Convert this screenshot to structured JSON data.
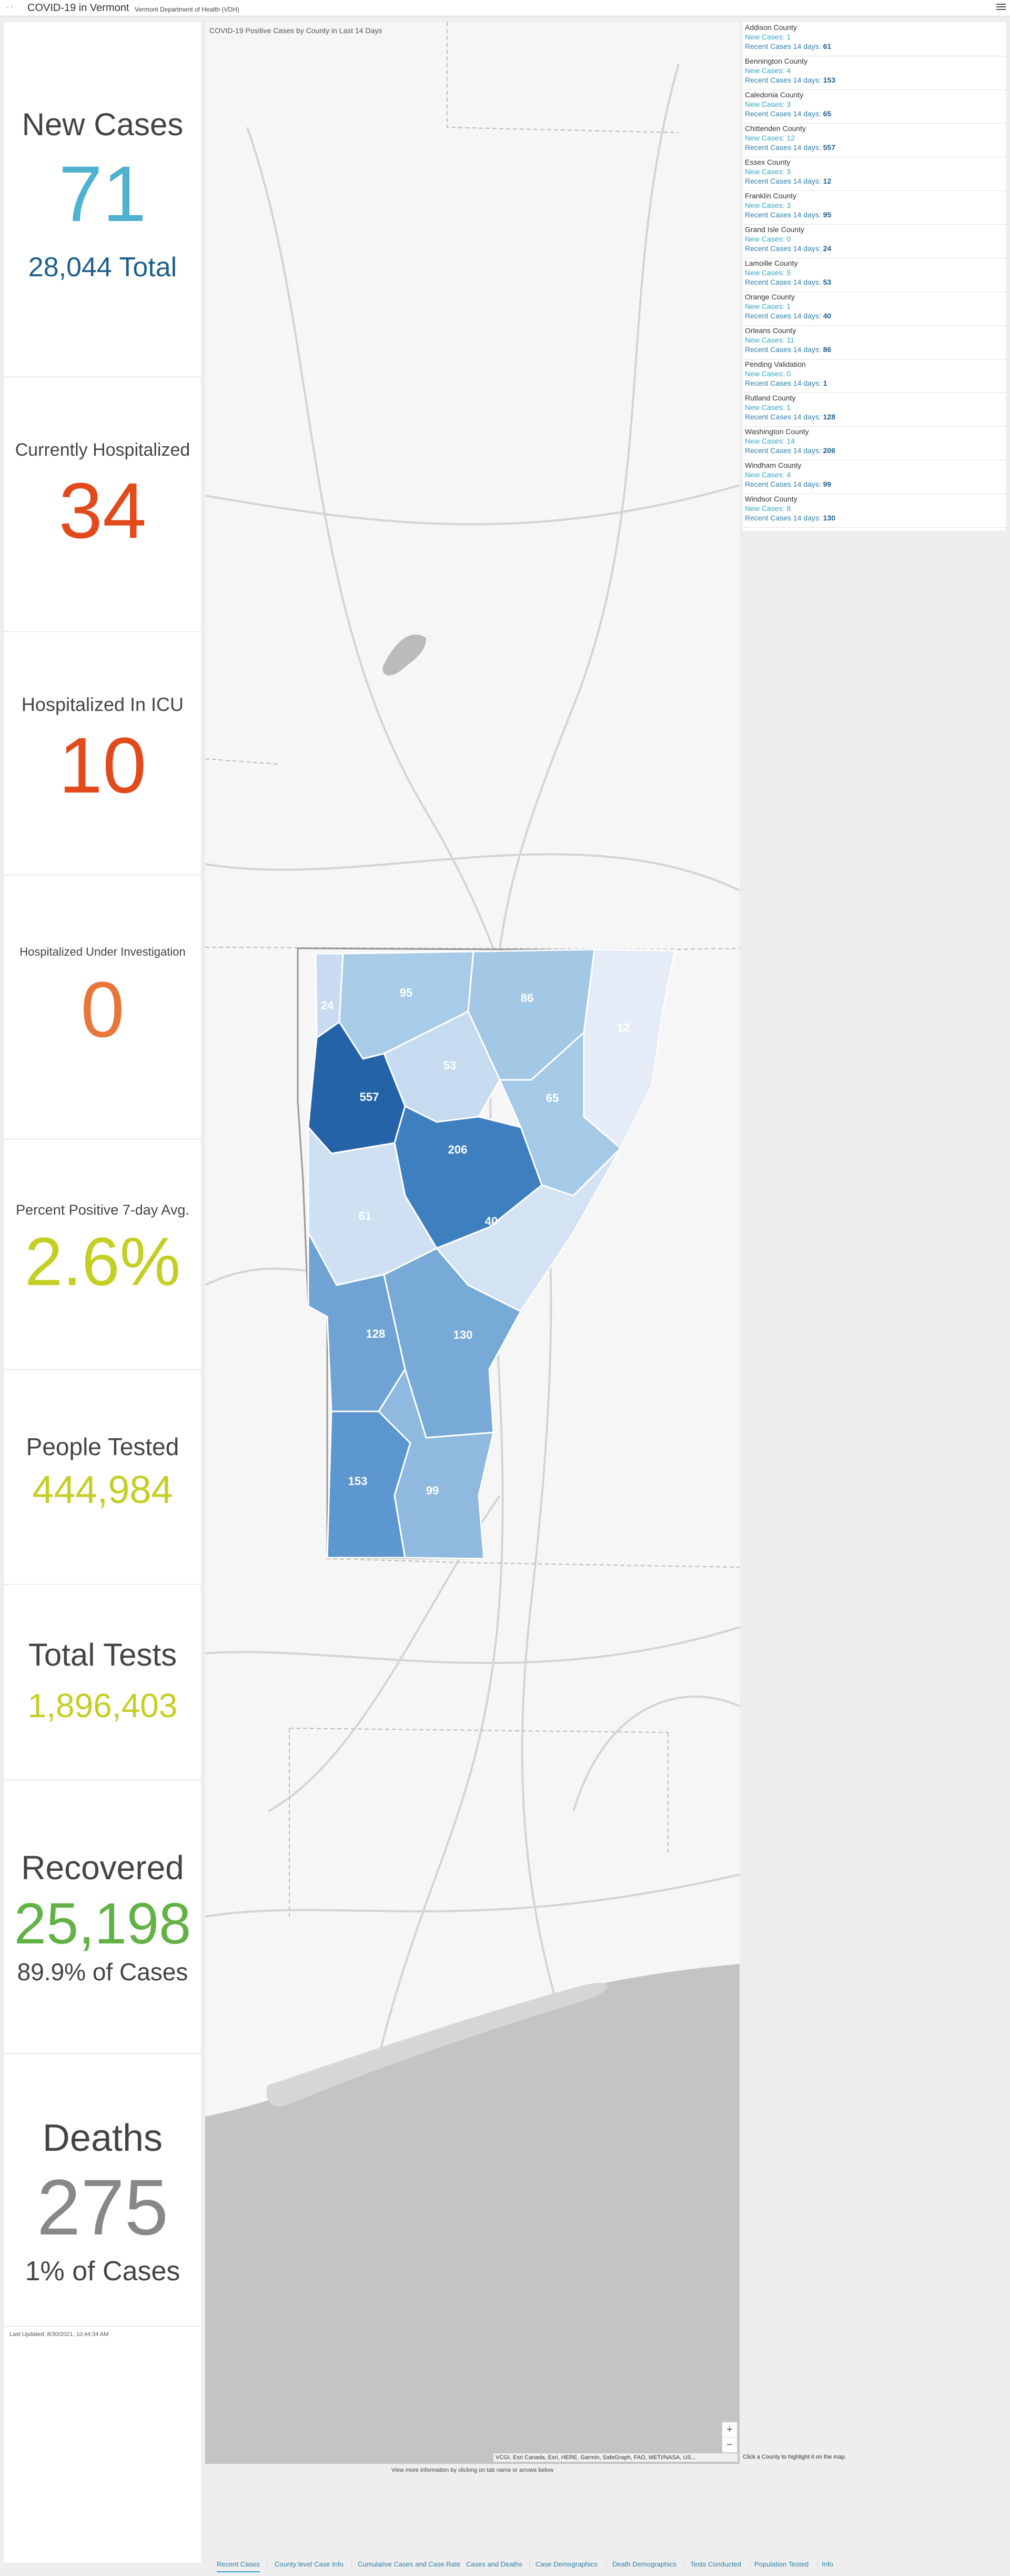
{
  "header": {
    "logo_text": "←↑",
    "title": "COVID-19 in Vermont",
    "subtitle": "Vermont Department of Health (VDH)",
    "menu_icon": "hamburger-menu-icon"
  },
  "stats": {
    "new_cases": {
      "label": "New Cases",
      "value": "71",
      "sub": "28,044 Total",
      "color": "#4fb2cf",
      "sub_color": "#1f5f8b"
    },
    "hospitalized": {
      "label": "Currently Hospitalized",
      "value": "34",
      "color": "#e34a1b"
    },
    "icu": {
      "label": "Hospitalized In ICU",
      "value": "10",
      "color": "#e34a1b"
    },
    "under_investigation": {
      "label": "Hospitalized Under Investigation",
      "value": "0",
      "color": "#e8753a"
    },
    "percent_positive": {
      "label": "Percent Positive 7-day Avg.",
      "value": "2.6%",
      "color": "#c5ce24"
    },
    "people_tested": {
      "label": "People Tested",
      "value": "444,984",
      "color": "#c5ce24"
    },
    "total_tests": {
      "label": "Total Tests",
      "value": "1,896,403",
      "color": "#c5ce24"
    },
    "recovered": {
      "label": "Recovered",
      "value": "25,198",
      "sub": "89.9% of Cases",
      "color": "#62b246"
    },
    "deaths": {
      "label": "Deaths",
      "value": "275",
      "sub": "1% of Cases",
      "color": "#888888"
    },
    "last_updated": "Last Updated: 8/30/2021, 10:44:34 AM"
  },
  "map": {
    "caption": "COVID-19 Positive Cases by County in Last 14 Days",
    "attribution": "VCGI, Esri Canada, Esri, HERE, Garmin, SafeGraph, FAO, METI/NASA, US...",
    "hint": "Click a County to highlight it on the map.",
    "tab_hint": "View more information by clicking on tab name or arrows below",
    "zoom_in": "+",
    "zoom_out": "−",
    "labels": {
      "grand_isle": "24",
      "franklin": "95",
      "orleans": "86",
      "essex": "12",
      "lamoille": "53",
      "caledonia": "65",
      "chittenden": "557",
      "washington": "206",
      "addison": "61",
      "orange": "40",
      "rutland": "128",
      "windsor": "130",
      "bennington": "153",
      "windham": "99"
    }
  },
  "counties": [
    {
      "name": "Addison County",
      "new": "New Cases: 1",
      "recent_label": "Recent Cases 14 days:",
      "recent": "61"
    },
    {
      "name": "Bennington County",
      "new": "New Cases: 4",
      "recent_label": "Recent Cases 14 days:",
      "recent": "153"
    },
    {
      "name": "Caledonia County",
      "new": "New Cases: 3",
      "recent_label": "Recent Cases 14 days:",
      "recent": "65"
    },
    {
      "name": "Chittenden County",
      "new": "New Cases: 12",
      "recent_label": "Recent Cases 14 days:",
      "recent": "557"
    },
    {
      "name": "Essex County",
      "new": "New Cases: 3",
      "recent_label": "Recent Cases 14 days:",
      "recent": "12"
    },
    {
      "name": "Franklin County",
      "new": "New Cases: 3",
      "recent_label": "Recent Cases 14 days:",
      "recent": "95"
    },
    {
      "name": "Grand Isle County",
      "new": "New Cases: 0",
      "recent_label": "Recent Cases 14 days:",
      "recent": "24"
    },
    {
      "name": "Lamoille County",
      "new": "New Cases: 5",
      "recent_label": "Recent Cases 14 days:",
      "recent": "53"
    },
    {
      "name": "Orange County",
      "new": "New Cases: 1",
      "recent_label": "Recent Cases 14 days:",
      "recent": "40"
    },
    {
      "name": "Orleans County",
      "new": "New Cases: 11",
      "recent_label": "Recent Cases 14 days:",
      "recent": "86"
    },
    {
      "name": "Pending Validation",
      "new": "New Cases: 0",
      "recent_label": "Recent Cases 14 days:",
      "recent": "1"
    },
    {
      "name": "Rutland County",
      "new": "New Cases: 1",
      "recent_label": "Recent Cases 14 days:",
      "recent": "128"
    },
    {
      "name": "Washington County",
      "new": "New Cases: 14",
      "recent_label": "Recent Cases 14 days:",
      "recent": "206"
    },
    {
      "name": "Windham County",
      "new": "New Cases: 4",
      "recent_label": "Recent Cases 14 days:",
      "recent": "99"
    },
    {
      "name": "Windsor County",
      "new": "New Cases: 8",
      "recent_label": "Recent Cases 14 days:",
      "recent": "130"
    }
  ],
  "tabs": [
    {
      "label": "Recent Cases",
      "active": true
    },
    {
      "label": "County level Case Info"
    },
    {
      "label": "Cumulative Cases and Case Rate"
    },
    {
      "label": "Cases and Deaths"
    },
    {
      "label": "Case Demographics"
    },
    {
      "label": "Death Demographics"
    },
    {
      "label": "Tests Conducted"
    },
    {
      "label": "Population Tested"
    },
    {
      "label": "Info"
    }
  ]
}
